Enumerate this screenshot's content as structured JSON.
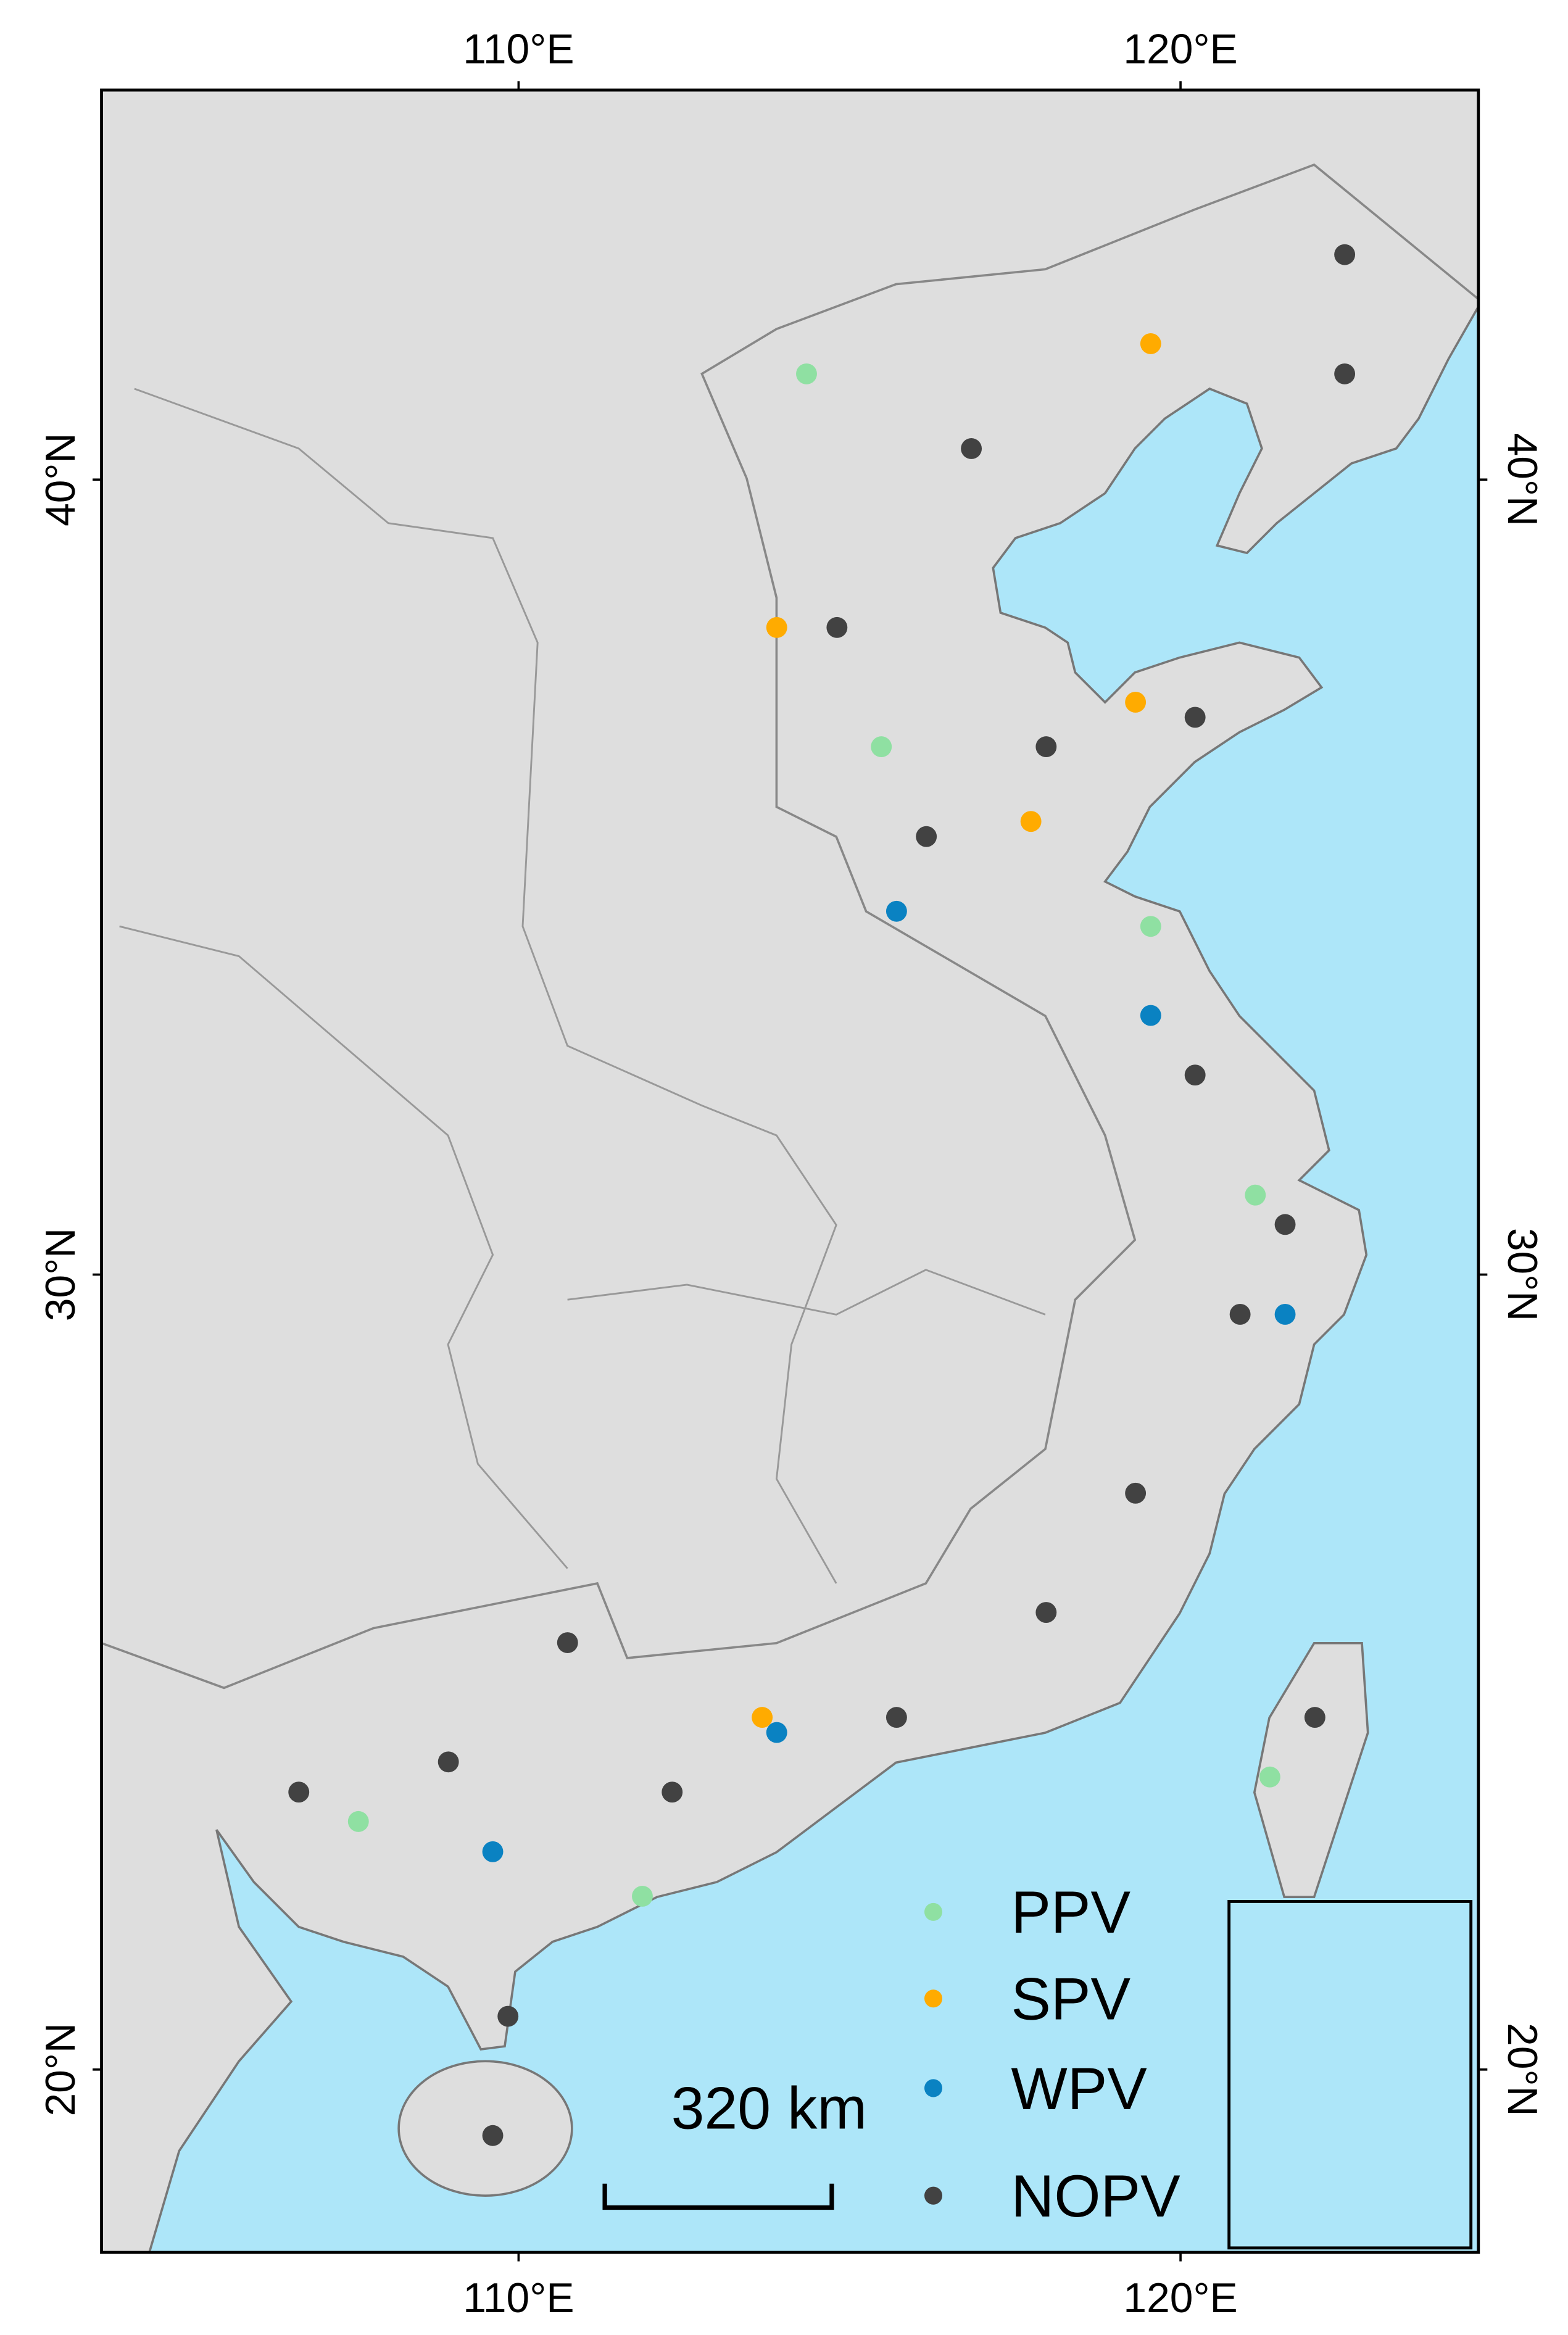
{
  "chart_data": {
    "type": "scatter",
    "xlim": [
      103.7,
      124.5
    ],
    "ylim": [
      17.7,
      44.9
    ],
    "xticks": [
      {
        "value": 110,
        "label": "110°E"
      },
      {
        "value": 120,
        "label": "120°E"
      }
    ],
    "yticks": [
      {
        "value": 20,
        "label": "20°N"
      },
      {
        "value": 30,
        "label": "30°N"
      },
      {
        "value": 40,
        "label": "40°N"
      }
    ],
    "legend": "bottom-right",
    "scale_label": "320 km",
    "series": [
      {
        "name": "PPV",
        "color": "#8fe0a2",
        "x": [
          114.35,
          115.48,
          119.55,
          121.13,
          107.58,
          121.35,
          111.87
        ],
        "values": [
          41.33,
          36.64,
          34.38,
          31.0,
          23.12,
          23.68,
          22.18
        ]
      },
      {
        "name": "SPV",
        "color": "#ffab00",
        "x": [
          113.9,
          117.74,
          119.55,
          113.68,
          119.32
        ],
        "values": [
          38.14,
          35.7,
          41.71,
          24.43,
          37.2
        ]
      },
      {
        "name": "WPV",
        "color": "#0a82c2",
        "x": [
          119.55,
          115.71,
          121.58,
          109.61,
          113.9
        ],
        "values": [
          33.26,
          34.57,
          29.5,
          22.74,
          24.24
        ]
      },
      {
        "name": "NOPV",
        "color": "#424242",
        "x": [
          122.48,
          116.84,
          114.81,
          117.97,
          120.22,
          120.22,
          120.9,
          119.32,
          117.97,
          115.71,
          112.32,
          108.94,
          106.68,
          109.84,
          109.61,
          122.03,
          122.48,
          116.16,
          121.58,
          110.74
        ],
        "values": [
          42.83,
          40.39,
          38.14,
          36.64,
          37.01,
          32.51,
          29.5,
          27.25,
          25.75,
          24.43,
          23.49,
          23.87,
          23.49,
          20.67,
          19.17,
          24.43,
          41.33,
          35.51,
          30.63,
          25.37
        ]
      }
    ]
  }
}
